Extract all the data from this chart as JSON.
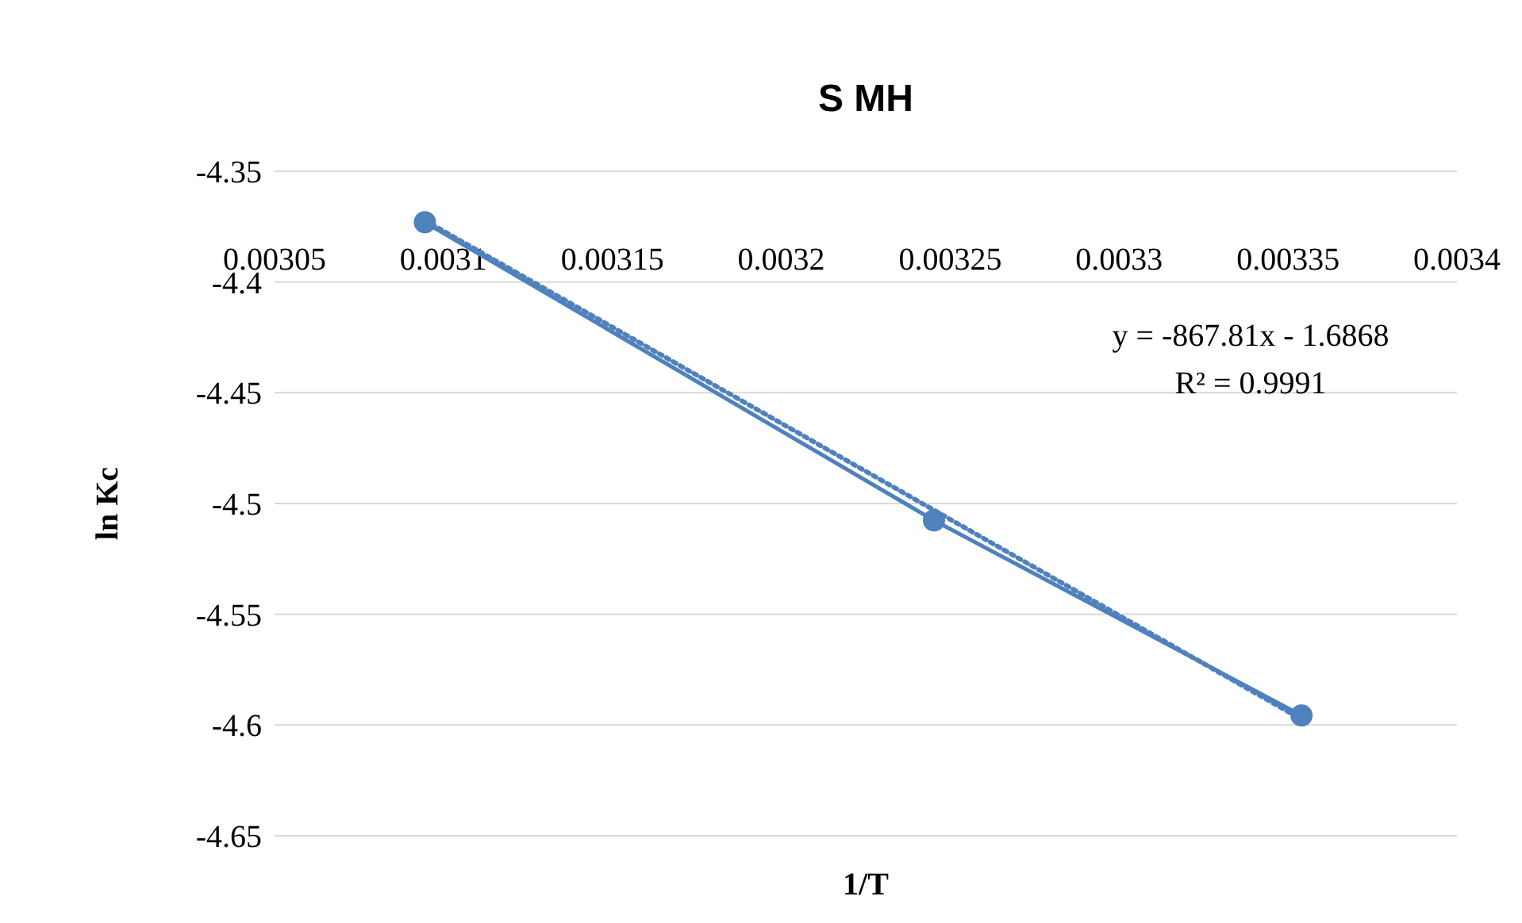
{
  "chart_data": {
    "type": "line",
    "title": "S MH",
    "xlabel": "1/T",
    "ylabel": "ln Kc",
    "series": [
      {
        "color": "#4f81bd",
        "x": [
          0.0030945,
          0.0032452,
          0.003354
        ],
        "values": [
          -4.373,
          -4.5076,
          -4.5957
        ],
        "marker": "circle",
        "line_style": "solid"
      },
      {
        "type": "line",
        "color": "#4f81bd",
        "x": [
          0.0030945,
          0.003354
        ],
        "values": [
          -4.3722,
          -4.5974
        ],
        "marker": "none",
        "line_style": "dotted"
      }
    ],
    "xlim": [
      0.00305,
      0.0034
    ],
    "xticks": [
      0.00305,
      0.0031,
      0.00315,
      0.0032,
      0.00325,
      0.0033,
      0.00335,
      0.0034
    ],
    "ylim": [
      -4.65,
      -4.35
    ],
    "yticks": [
      -4.65,
      -4.6,
      -4.55,
      -4.5,
      -4.45,
      -4.4,
      -4.35
    ],
    "grid": "y",
    "annotations": [
      "y = -867.81x - 1.6868",
      "R² = 0.9991"
    ]
  }
}
